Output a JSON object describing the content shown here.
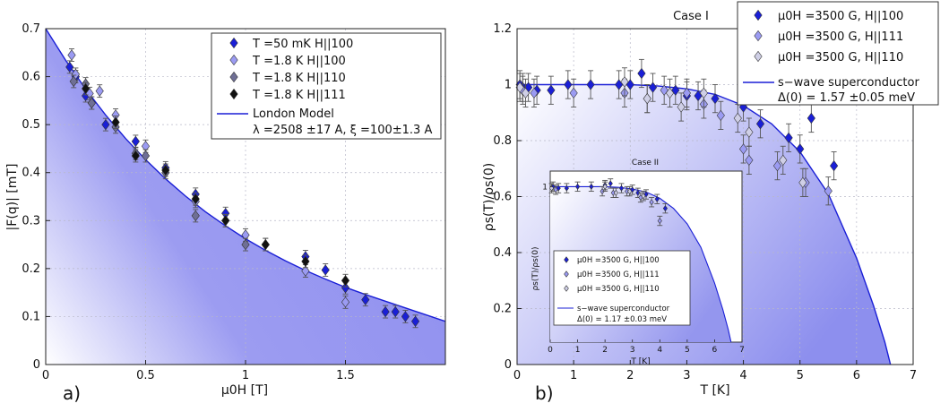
{
  "chart_data": [
    {
      "type": "scatter",
      "panel_label": "a)",
      "title": "",
      "xlabel": "μ0H [T]",
      "ylabel": "|F(q)| [mT]",
      "xlim": [
        0,
        2.0
      ],
      "ylim": [
        0,
        0.7
      ],
      "xticks": [
        {
          "label": "0",
          "value": 0
        },
        {
          "label": "0.5",
          "value": 0.5
        },
        {
          "label": "1",
          "value": 1
        },
        {
          "label": "1.5",
          "value": 1.5
        }
      ],
      "yticks": [
        {
          "label": "0",
          "value": 0
        },
        {
          "label": "0.1",
          "value": 0.1
        },
        {
          "label": "0.2",
          "value": 0.2
        },
        {
          "label": "0.3",
          "value": 0.3
        },
        {
          "label": "0.4",
          "value": 0.4
        },
        {
          "label": "0.5",
          "value": 0.5
        },
        {
          "label": "0.6",
          "value": 0.6
        },
        {
          "label": "0.7",
          "value": 0.7
        }
      ],
      "legend_position": "top-right",
      "series": [
        {
          "name": "T =50 mK H||100",
          "color": "#1a1fd6",
          "x": [
            0.12,
            0.15,
            0.2,
            0.23,
            0.3,
            0.45,
            0.6,
            0.75,
            0.9,
            1.1,
            1.3,
            1.4,
            1.5,
            1.6,
            1.7,
            1.75,
            1.8,
            1.85
          ],
          "y": [
            0.62,
            0.6,
            0.56,
            0.545,
            0.5,
            0.465,
            0.41,
            0.355,
            0.315,
            0.25,
            0.225,
            0.197,
            0.16,
            0.135,
            0.11,
            0.11,
            0.1,
            0.09
          ]
        },
        {
          "name": "T =1.8 K H||100",
          "color": "#9b9bf2",
          "x": [
            0.13,
            0.15,
            0.22,
            0.27,
            0.35,
            0.5,
            0.75,
            1.0,
            1.3,
            1.5
          ],
          "y": [
            0.645,
            0.605,
            0.565,
            0.57,
            0.52,
            0.455,
            0.34,
            0.27,
            0.195,
            0.13
          ]
        },
        {
          "name": "T =1.8 K H||110",
          "color": "#6f6f95",
          "x": [
            0.14,
            0.2,
            0.23,
            0.35,
            0.45,
            0.5,
            0.6,
            0.75,
            0.9,
            1.0
          ],
          "y": [
            0.59,
            0.585,
            0.545,
            0.495,
            0.44,
            0.435,
            0.4,
            0.31,
            0.3,
            0.25
          ]
        },
        {
          "name": "T =1.8 K H||111",
          "color": "#111111",
          "x": [
            0.2,
            0.35,
            0.45,
            0.6,
            0.75,
            0.9,
            1.1,
            1.3,
            1.5
          ],
          "y": [
            0.575,
            0.505,
            0.435,
            0.405,
            0.345,
            0.3,
            0.25,
            0.215,
            0.175
          ]
        }
      ],
      "error": 0.013,
      "model": {
        "name": "London Model",
        "params_label": "λ =2508 ±17 A, ξ =100±1.3 A",
        "color": "#1a1fd6",
        "x": [
          0,
          0.1,
          0.2,
          0.3,
          0.4,
          0.5,
          0.6,
          0.7,
          0.8,
          0.9,
          1.0,
          1.1,
          1.2,
          1.3,
          1.4,
          1.5,
          1.6,
          1.7,
          1.8,
          1.9,
          2.0
        ],
        "y": [
          0.7,
          0.634,
          0.574,
          0.52,
          0.471,
          0.427,
          0.387,
          0.351,
          0.318,
          0.289,
          0.262,
          0.238,
          0.216,
          0.196,
          0.178,
          0.161,
          0.146,
          0.132,
          0.118,
          0.104,
          0.09
        ]
      }
    },
    {
      "type": "scatter",
      "panel_label": "b)",
      "title": "Case I",
      "xlabel": "T [K]",
      "ylabel": "ρs(T)/ρs(0)",
      "xlim": [
        0,
        7
      ],
      "ylim": [
        0,
        1.2
      ],
      "xticks": [
        {
          "label": "0",
          "value": 0
        },
        {
          "label": "1",
          "value": 1
        },
        {
          "label": "2",
          "value": 2
        },
        {
          "label": "3",
          "value": 3
        },
        {
          "label": "4",
          "value": 4
        },
        {
          "label": "5",
          "value": 5
        },
        {
          "label": "6",
          "value": 6
        },
        {
          "label": "7",
          "value": 7
        }
      ],
      "yticks": [
        {
          "label": "0",
          "value": 0
        },
        {
          "label": "0.2",
          "value": 0.2
        },
        {
          "label": "0.4",
          "value": 0.4
        },
        {
          "label": "0.6",
          "value": 0.6
        },
        {
          "label": "0.8",
          "value": 0.8
        },
        {
          "label": "1",
          "value": 1
        },
        {
          "label": "1.2",
          "value": 1.2
        }
      ],
      "legend_position": "top-right",
      "series": [
        {
          "name": "μ0H =3500 G, H||100",
          "color": "#1a1fd6",
          "x": [
            0.05,
            0.1,
            0.2,
            0.35,
            0.6,
            0.9,
            1.3,
            1.8,
            2.0,
            2.2,
            2.4,
            2.8,
            3.0,
            3.2,
            3.5,
            4.0,
            4.3,
            4.8,
            5.0,
            5.2,
            5.6
          ],
          "y": [
            1.0,
            0.99,
            0.99,
            0.98,
            0.98,
            1.0,
            1.0,
            1.0,
            1.0,
            1.04,
            0.99,
            0.98,
            0.96,
            0.96,
            0.95,
            0.92,
            0.86,
            0.81,
            0.77,
            0.88,
            0.71
          ]
        },
        {
          "name": "μ0H =3500 G, H||111",
          "color": "#9b9bf2",
          "x": [
            0.1,
            0.3,
            1.0,
            1.9,
            2.3,
            2.6,
            3.0,
            3.3,
            3.6,
            4.0,
            4.1,
            4.6,
            5.1,
            5.5
          ],
          "y": [
            0.98,
            0.97,
            0.97,
            0.97,
            0.95,
            0.98,
            0.97,
            0.93,
            0.89,
            0.77,
            0.73,
            0.71,
            0.65,
            0.62
          ]
        },
        {
          "name": "μ0H =3500 G, H||110",
          "color": "#cfcfe6",
          "x": [
            0.05,
            0.15,
            1.9,
            2.3,
            2.7,
            2.9,
            3.3,
            3.9,
            4.1,
            4.7,
            5.05
          ],
          "y": [
            0.99,
            0.97,
            1.01,
            0.95,
            0.97,
            0.92,
            0.97,
            0.88,
            0.83,
            0.73,
            0.65
          ]
        }
      ],
      "error": 0.05,
      "model": {
        "name": "s−wave superconductor",
        "params_label": "Δ(0) = 1.57 ±0.05 meV",
        "color": "#1a1fd6",
        "x": [
          0,
          1,
          2,
          2.5,
          3,
          3.5,
          4,
          4.5,
          5,
          5.5,
          6,
          6.3,
          6.5,
          6.6
        ],
        "y": [
          1.0,
          1.0,
          1.0,
          0.995,
          0.985,
          0.965,
          0.925,
          0.86,
          0.76,
          0.61,
          0.38,
          0.21,
          0.08,
          0.0
        ]
      },
      "inset": {
        "title": "Case II",
        "xlabel": "T [K]",
        "ylabel": "ρs(T)/ρs(0)",
        "xlim": [
          0,
          7
        ],
        "ylim": [
          0,
          1.1
        ],
        "xticks": [
          "0",
          "1",
          "2",
          "3",
          "4",
          "5",
          "6",
          "7"
        ],
        "ytick_label": "1",
        "series": [
          {
            "name": "μ0H =3500 G, H||100",
            "color": "#1a1fd6",
            "x": [
              0.1,
              0.3,
              0.6,
              1.0,
              1.5,
              2.0,
              2.2,
              2.6,
              3.0,
              3.2,
              3.5,
              3.9,
              4.2
            ],
            "y": [
              1.0,
              0.99,
              0.99,
              1.0,
              1.0,
              1.01,
              1.02,
              0.99,
              0.98,
              0.96,
              0.95,
              0.92,
              0.86
            ]
          },
          {
            "name": "μ0H =3500 G, H||111",
            "color": "#9b9bf2",
            "x": [
              0.2,
              1.9,
              2.3,
              2.8,
              3.3,
              3.7,
              4.0
            ],
            "y": [
              0.98,
              0.97,
              0.96,
              0.97,
              0.93,
              0.9,
              0.78
            ]
          },
          {
            "name": "μ0H =3500 G, H||110",
            "color": "#cfcfe6",
            "x": [
              0.05,
              2.0,
              2.4,
              2.9,
              3.4
            ],
            "y": [
              0.99,
              1.0,
              0.96,
              0.97,
              0.94
            ]
          }
        ],
        "model": {
          "name": "s−wave superconductor",
          "params_label": "Δ(0) = 1.17 ±0.03 meV",
          "x": [
            0,
            1,
            2,
            2.5,
            3,
            3.5,
            4,
            4.5,
            5,
            5.5,
            6,
            6.3,
            6.5,
            6.6
          ],
          "y": [
            1.0,
            1.0,
            1.0,
            0.995,
            0.985,
            0.965,
            0.925,
            0.86,
            0.76,
            0.61,
            0.38,
            0.21,
            0.08,
            0.0
          ]
        }
      }
    }
  ]
}
